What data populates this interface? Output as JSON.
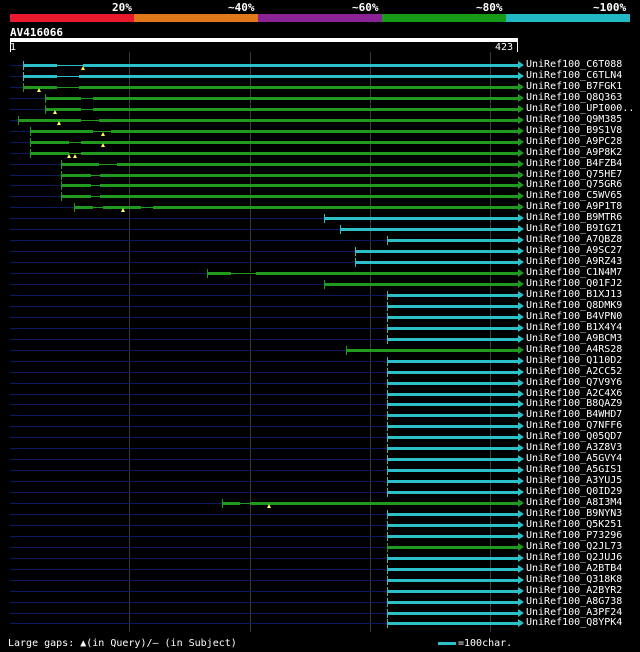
{
  "header": {
    "percent_labels": [
      "20%",
      "~40%",
      "~60%",
      "~80%",
      "~100%"
    ],
    "color_bands": [
      "#e8192c",
      "#e0781a",
      "#8a2496",
      "#179a18",
      "#22b8c4"
    ]
  },
  "query": {
    "name": "AV416066",
    "start": "1",
    "end": "423",
    "length": 423
  },
  "colors": {
    "background": "#000000",
    "track": "#0b1a5c",
    "high": "#2bc0c8",
    "mid": "#1f9a1f",
    "gap": "#000000",
    "marker": "#ffff60",
    "grid": "#3a3a3a"
  },
  "chart_data": {
    "type": "alignment",
    "xlim": [
      1,
      423
    ],
    "grid": [
      100,
      200,
      300,
      400
    ],
    "hits": [
      {
        "id": "UniRef100_C6T088",
        "s": 12,
        "e": 423,
        "c": "high",
        "gaps": [
          {
            "s": 40,
            "e": 58
          },
          {
            "s": 58,
            "e": 62
          }
        ],
        "marks": [
          62
        ]
      },
      {
        "id": "UniRef100_C6TLN4",
        "s": 12,
        "e": 423,
        "c": "high",
        "gaps": [
          {
            "s": 40,
            "e": 58
          }
        ],
        "marks": []
      },
      {
        "id": "UniRef100_B7FGK1",
        "s": 12,
        "e": 423,
        "c": "mid",
        "gaps": [
          {
            "s": 40,
            "e": 58
          }
        ],
        "marks": [
          25
        ]
      },
      {
        "id": "UniRef100_Q8Q363",
        "s": 30,
        "e": 423,
        "c": "mid",
        "gaps": [
          {
            "s": 60,
            "e": 70
          }
        ],
        "marks": []
      },
      {
        "id": "UniRef100_UPI000..",
        "s": 30,
        "e": 423,
        "c": "mid",
        "gaps": [
          {
            "s": 60,
            "e": 70
          }
        ],
        "marks": [
          38
        ]
      },
      {
        "id": "UniRef100_Q9M385",
        "s": 8,
        "e": 423,
        "c": "mid",
        "gaps": [
          {
            "s": 60,
            "e": 75
          }
        ],
        "marks": [
          42
        ]
      },
      {
        "id": "UniRef100_B9S1V8",
        "s": 18,
        "e": 423,
        "c": "mid",
        "gaps": [
          {
            "s": 70,
            "e": 85
          }
        ],
        "marks": [
          78
        ]
      },
      {
        "id": "UniRef100_A9PC28",
        "s": 18,
        "e": 423,
        "c": "mid",
        "gaps": [
          {
            "s": 50,
            "e": 60
          }
        ],
        "marks": [
          78
        ]
      },
      {
        "id": "UniRef100_A9P8K2",
        "s": 18,
        "e": 423,
        "c": "mid",
        "gaps": [
          {
            "s": 50,
            "e": 60
          }
        ],
        "marks": [
          50,
          55
        ]
      },
      {
        "id": "UniRef100_B4FZB4",
        "s": 43,
        "e": 423,
        "c": "mid",
        "gaps": [
          {
            "s": 75,
            "e": 90
          }
        ],
        "marks": []
      },
      {
        "id": "UniRef100_Q75HE7",
        "s": 43,
        "e": 423,
        "c": "mid",
        "gaps": [
          {
            "s": 68,
            "e": 76
          }
        ],
        "marks": []
      },
      {
        "id": "UniRef100_Q75GR6",
        "s": 43,
        "e": 423,
        "c": "mid",
        "gaps": [
          {
            "s": 68,
            "e": 76
          }
        ],
        "marks": []
      },
      {
        "id": "UniRef100_C5WV65",
        "s": 43,
        "e": 423,
        "c": "mid",
        "gaps": [
          {
            "s": 68,
            "e": 76
          }
        ],
        "marks": []
      },
      {
        "id": "UniRef100_A9P1T8",
        "s": 54,
        "e": 423,
        "c": "mid",
        "gaps": [
          {
            "s": 70,
            "e": 78
          },
          {
            "s": 110,
            "e": 120
          }
        ],
        "marks": [
          95
        ]
      },
      {
        "id": "UniRef100_B9MTR6",
        "s": 262,
        "e": 423,
        "c": "high",
        "gaps": [],
        "marks": []
      },
      {
        "id": "UniRef100_B9IGZ1",
        "s": 275,
        "e": 423,
        "c": "high",
        "gaps": [],
        "marks": []
      },
      {
        "id": "UniRef100_A7QBZ8",
        "s": 314,
        "e": 423,
        "c": "high",
        "gaps": [],
        "marks": []
      },
      {
        "id": "UniRef100_A9SC27",
        "s": 288,
        "e": 423,
        "c": "high",
        "gaps": [],
        "marks": []
      },
      {
        "id": "UniRef100_A9RZ43",
        "s": 288,
        "e": 423,
        "c": "high",
        "gaps": [],
        "marks": []
      },
      {
        "id": "UniRef100_C1N4M7",
        "s": 165,
        "e": 423,
        "c": "mid",
        "gaps": [
          {
            "s": 185,
            "e": 205
          }
        ],
        "marks": []
      },
      {
        "id": "UniRef100_Q01FJ2",
        "s": 262,
        "e": 423,
        "c": "mid",
        "gaps": [],
        "marks": []
      },
      {
        "id": "UniRef100_B1XJ13",
        "s": 314,
        "e": 423,
        "c": "high",
        "gaps": [],
        "marks": []
      },
      {
        "id": "UniRef100_Q8DMK9",
        "s": 314,
        "e": 423,
        "c": "high",
        "gaps": [],
        "marks": []
      },
      {
        "id": "UniRef100_B4VPN0",
        "s": 314,
        "e": 423,
        "c": "high",
        "gaps": [],
        "marks": []
      },
      {
        "id": "UniRef100_B1X4Y4",
        "s": 314,
        "e": 423,
        "c": "high",
        "gaps": [],
        "marks": []
      },
      {
        "id": "UniRef100_A9BCM3",
        "s": 314,
        "e": 423,
        "c": "high",
        "gaps": [],
        "marks": []
      },
      {
        "id": "UniRef100_A4RS28",
        "s": 280,
        "e": 423,
        "c": "mid",
        "gaps": [],
        "marks": []
      },
      {
        "id": "UniRef100_Q110D2",
        "s": 314,
        "e": 423,
        "c": "high",
        "gaps": [],
        "marks": []
      },
      {
        "id": "UniRef100_A2CC52",
        "s": 314,
        "e": 423,
        "c": "high",
        "gaps": [],
        "marks": []
      },
      {
        "id": "UniRef100_Q7V9Y6",
        "s": 314,
        "e": 423,
        "c": "high",
        "gaps": [],
        "marks": []
      },
      {
        "id": "UniRef100_A2C4X6",
        "s": 314,
        "e": 423,
        "c": "high",
        "gaps": [],
        "marks": []
      },
      {
        "id": "UniRef100_B8QAZ9",
        "s": 314,
        "e": 423,
        "c": "high",
        "gaps": [],
        "marks": []
      },
      {
        "id": "UniRef100_B4WHD7",
        "s": 314,
        "e": 423,
        "c": "high",
        "gaps": [],
        "marks": []
      },
      {
        "id": "UniRef100_Q7NFF6",
        "s": 314,
        "e": 423,
        "c": "high",
        "gaps": [],
        "marks": []
      },
      {
        "id": "UniRef100_Q05QD7",
        "s": 314,
        "e": 423,
        "c": "high",
        "gaps": [],
        "marks": []
      },
      {
        "id": "UniRef100_A3Z8V3",
        "s": 314,
        "e": 423,
        "c": "high",
        "gaps": [],
        "marks": []
      },
      {
        "id": "UniRef100_A5GVY4",
        "s": 314,
        "e": 423,
        "c": "high",
        "gaps": [],
        "marks": []
      },
      {
        "id": "UniRef100_A5GIS1",
        "s": 314,
        "e": 423,
        "c": "high",
        "gaps": [],
        "marks": []
      },
      {
        "id": "UniRef100_A3YUJ5",
        "s": 314,
        "e": 423,
        "c": "high",
        "gaps": [],
        "marks": []
      },
      {
        "id": "UniRef100_Q0ID29",
        "s": 314,
        "e": 423,
        "c": "high",
        "gaps": [],
        "marks": []
      },
      {
        "id": "UniRef100_A8I3M4",
        "s": 177,
        "e": 423,
        "c": "mid",
        "gaps": [
          {
            "s": 192,
            "e": 200
          }
        ],
        "marks": [
          216
        ]
      },
      {
        "id": "UniRef100_B9NYN3",
        "s": 314,
        "e": 423,
        "c": "high",
        "gaps": [],
        "marks": []
      },
      {
        "id": "UniRef100_Q5K251",
        "s": 314,
        "e": 423,
        "c": "high",
        "gaps": [],
        "marks": []
      },
      {
        "id": "UniRef100_P73296",
        "s": 314,
        "e": 423,
        "c": "high",
        "gaps": [],
        "marks": []
      },
      {
        "id": "UniRef100_Q2JL73",
        "s": 314,
        "e": 423,
        "c": "mid",
        "gaps": [],
        "marks": []
      },
      {
        "id": "UniRef100_Q2JUJ6",
        "s": 314,
        "e": 423,
        "c": "high",
        "gaps": [],
        "marks": []
      },
      {
        "id": "UniRef100_A2BTB4",
        "s": 314,
        "e": 423,
        "c": "high",
        "gaps": [],
        "marks": []
      },
      {
        "id": "UniRef100_Q318K8",
        "s": 314,
        "e": 423,
        "c": "high",
        "gaps": [],
        "marks": []
      },
      {
        "id": "UniRef100_A2BYR2",
        "s": 314,
        "e": 423,
        "c": "high",
        "gaps": [],
        "marks": []
      },
      {
        "id": "UniRef100_A8G738",
        "s": 314,
        "e": 423,
        "c": "high",
        "gaps": [],
        "marks": []
      },
      {
        "id": "UniRef100_A3PF24",
        "s": 314,
        "e": 423,
        "c": "high",
        "gaps": [],
        "marks": []
      },
      {
        "id": "UniRef100_Q8YPK4",
        "s": 314,
        "e": 423,
        "c": "high",
        "gaps": [],
        "marks": []
      }
    ]
  },
  "legend": {
    "gaps_text": "Large gaps: ▲(in Query)/— (in Subject)",
    "scale_text": "=100char."
  }
}
